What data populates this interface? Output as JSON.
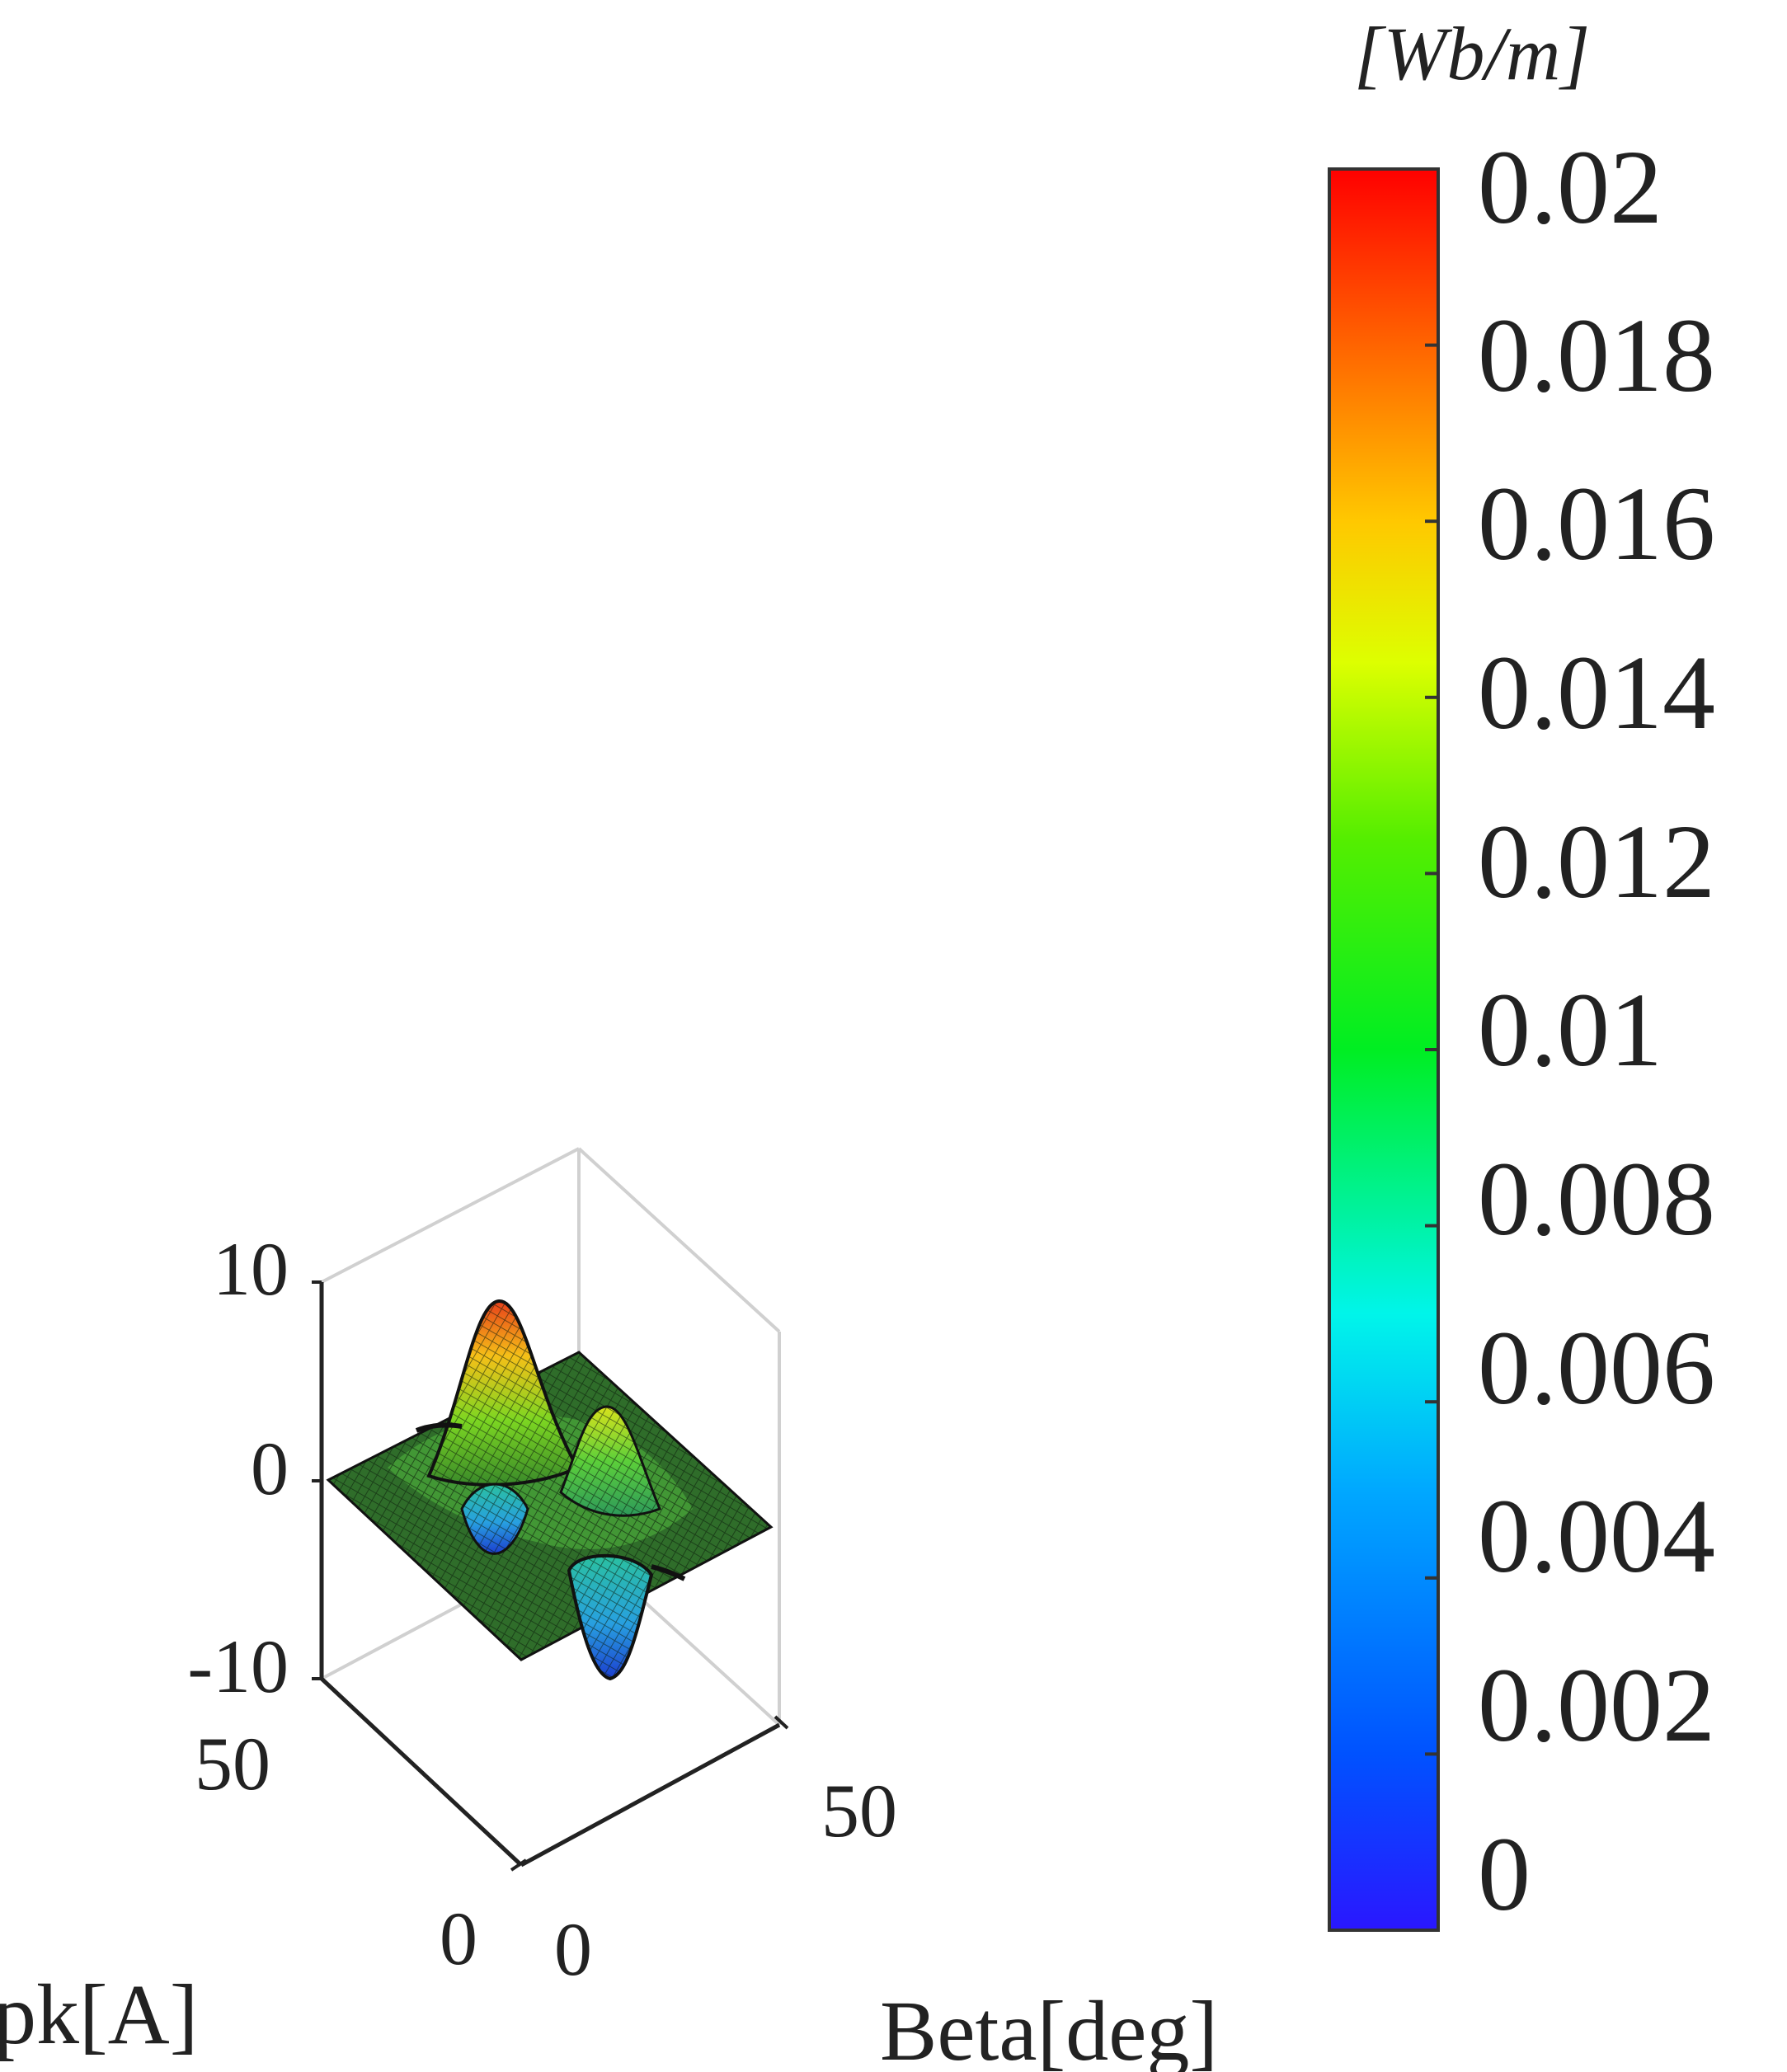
{
  "chart_data": {
    "type": "surface",
    "title": "",
    "z_tick_labels": [
      "10",
      "0",
      "-10"
    ],
    "x_axis": {
      "label": "pk[A]",
      "tick_labels": [
        "50",
        "0"
      ]
    },
    "y_axis": {
      "label": "Beta[deg]",
      "tick_labels": [
        "50",
        "0"
      ]
    },
    "zlim": [
      -10,
      10
    ],
    "colorbar": {
      "unit_label": "[Wb/m]",
      "min": 0,
      "max": 0.02,
      "tick_labels": [
        "0.02",
        "0.018",
        "0.016",
        "0.014",
        "0.012",
        "0.01",
        "0.008",
        "0.006",
        "0.004",
        "0.002",
        "0"
      ],
      "colormap": "jet"
    },
    "surface_features": [
      {
        "name": "main-peak",
        "z_approx": 9.5,
        "color_value": 0.019
      },
      {
        "name": "secondary-peak",
        "z_approx": 4.5,
        "color_value": 0.014
      },
      {
        "name": "trough",
        "z_approx": -9.0,
        "color_value": 0.003
      }
    ]
  }
}
